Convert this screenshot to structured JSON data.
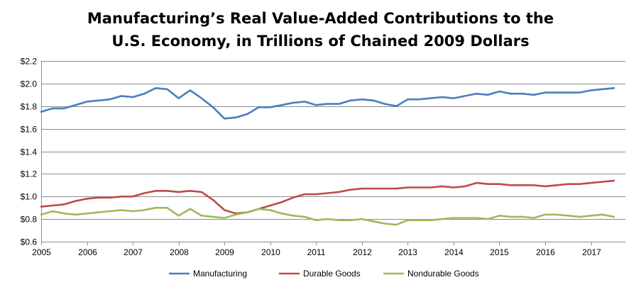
{
  "chart_data": {
    "type": "line",
    "title_line1": "Manufacturing’s Real Value-Added Contributions to the",
    "title_line2": "U.S. Economy, in Trillions of Chained 2009 Dollars",
    "xlabel": "",
    "ylabel": "",
    "ylim": [
      0.6,
      2.2
    ],
    "yticks": [
      0.6,
      0.8,
      1.0,
      1.2,
      1.4,
      1.6,
      1.8,
      2.0,
      2.2
    ],
    "ytick_labels": [
      "$0.6",
      "$0.8",
      "$1.0",
      "$1.2",
      "$1.4",
      "$1.6",
      "$1.8",
      "$2.0",
      "$2.2"
    ],
    "xlim": [
      2005,
      2017.75
    ],
    "xticks": [
      2005,
      2006,
      2007,
      2008,
      2009,
      2010,
      2011,
      2012,
      2013,
      2014,
      2015,
      2016,
      2017
    ],
    "xtick_labels": [
      "2005",
      "2006",
      "2007",
      "2008",
      "2009",
      "2010",
      "2011",
      "2012",
      "2013",
      "2014",
      "2015",
      "2016",
      "2017"
    ],
    "grid": "horizontal",
    "legend_position": "bottom",
    "x": [
      2005.0,
      2005.25,
      2005.5,
      2005.75,
      2006.0,
      2006.25,
      2006.5,
      2006.75,
      2007.0,
      2007.25,
      2007.5,
      2007.75,
      2008.0,
      2008.25,
      2008.5,
      2008.75,
      2009.0,
      2009.25,
      2009.5,
      2009.75,
      2010.0,
      2010.25,
      2010.5,
      2010.75,
      2011.0,
      2011.25,
      2011.5,
      2011.75,
      2012.0,
      2012.25,
      2012.5,
      2012.75,
      2013.0,
      2013.25,
      2013.5,
      2013.75,
      2014.0,
      2014.25,
      2014.5,
      2014.75,
      2015.0,
      2015.25,
      2015.5,
      2015.75,
      2016.0,
      2016.25,
      2016.5,
      2016.75,
      2017.0,
      2017.25,
      2017.5
    ],
    "series": [
      {
        "name": "Manufacturing",
        "color": "#4a7ebb",
        "values": [
          1.75,
          1.78,
          1.78,
          1.81,
          1.84,
          1.85,
          1.86,
          1.89,
          1.88,
          1.91,
          1.96,
          1.95,
          1.87,
          1.94,
          1.87,
          1.79,
          1.69,
          1.7,
          1.73,
          1.79,
          1.79,
          1.81,
          1.83,
          1.84,
          1.81,
          1.82,
          1.82,
          1.85,
          1.86,
          1.85,
          1.82,
          1.8,
          1.86,
          1.86,
          1.87,
          1.88,
          1.87,
          1.89,
          1.91,
          1.9,
          1.93,
          1.91,
          1.91,
          1.9,
          1.92,
          1.92,
          1.92,
          1.92,
          1.94,
          1.95,
          1.96
        ]
      },
      {
        "name": "Durable Goods",
        "color": "#be4b48",
        "values": [
          0.91,
          0.92,
          0.93,
          0.96,
          0.98,
          0.99,
          0.99,
          1.0,
          1.0,
          1.03,
          1.05,
          1.05,
          1.04,
          1.05,
          1.04,
          0.97,
          0.88,
          0.85,
          0.86,
          0.89,
          0.92,
          0.95,
          0.99,
          1.02,
          1.02,
          1.03,
          1.04,
          1.06,
          1.07,
          1.07,
          1.07,
          1.07,
          1.08,
          1.08,
          1.08,
          1.09,
          1.08,
          1.09,
          1.12,
          1.11,
          1.11,
          1.1,
          1.1,
          1.1,
          1.09,
          1.1,
          1.11,
          1.11,
          1.12,
          1.13,
          1.14
        ]
      },
      {
        "name": "Nondurable Goods",
        "color": "#9bbb59",
        "values": [
          0.84,
          0.87,
          0.85,
          0.84,
          0.85,
          0.86,
          0.87,
          0.88,
          0.87,
          0.88,
          0.9,
          0.9,
          0.83,
          0.89,
          0.83,
          0.82,
          0.81,
          0.84,
          0.86,
          0.89,
          0.88,
          0.85,
          0.83,
          0.82,
          0.79,
          0.8,
          0.79,
          0.79,
          0.8,
          0.78,
          0.76,
          0.75,
          0.79,
          0.79,
          0.79,
          0.8,
          0.81,
          0.81,
          0.81,
          0.8,
          0.83,
          0.82,
          0.82,
          0.81,
          0.84,
          0.84,
          0.83,
          0.82,
          0.83,
          0.84,
          0.82
        ]
      }
    ]
  }
}
